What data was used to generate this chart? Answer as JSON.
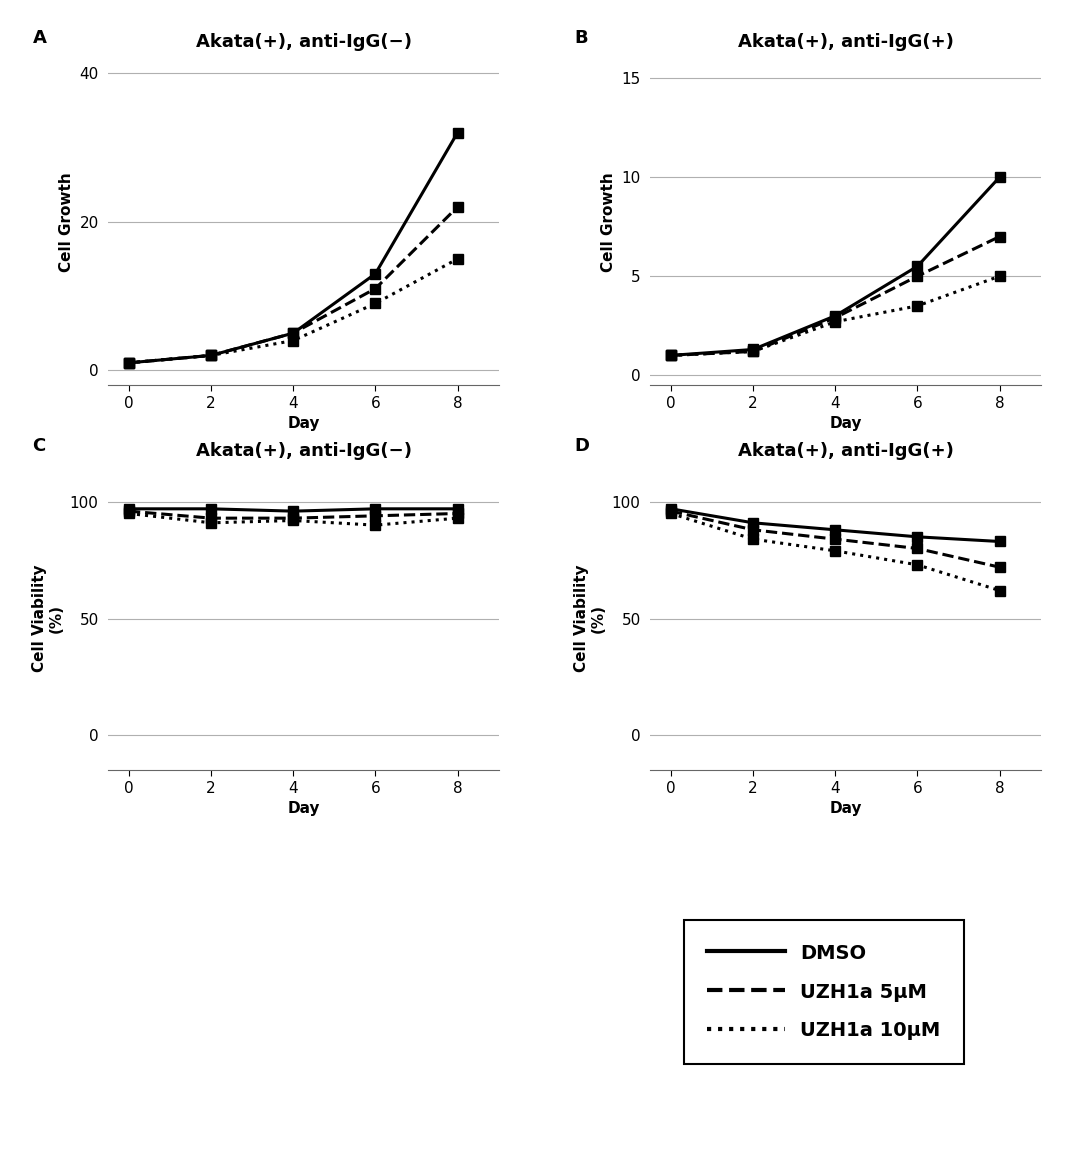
{
  "days": [
    0,
    2,
    4,
    6,
    8
  ],
  "panel_A": {
    "title": "Akata(+), anti-IgG(−)",
    "ylabel": "Cell Growth",
    "ylim": [
      -2,
      42
    ],
    "yticks": [
      0,
      20,
      40
    ],
    "dmso": [
      1,
      2,
      5,
      13,
      32
    ],
    "uzh5": [
      1,
      2,
      5,
      11,
      22
    ],
    "uzh10": [
      1,
      2,
      4,
      9,
      15
    ]
  },
  "panel_B": {
    "title": "Akata(+), anti-IgG(+)",
    "ylabel": "Cell Growth",
    "ylim": [
      -0.5,
      16
    ],
    "yticks": [
      0,
      5,
      10,
      15
    ],
    "dmso": [
      1,
      1.3,
      3,
      5.5,
      10
    ],
    "uzh5": [
      1,
      1.2,
      2.9,
      5,
      7
    ],
    "uzh10": [
      1,
      1.2,
      2.7,
      3.5,
      5
    ]
  },
  "panel_C": {
    "title": "Akata(+), anti-IgG(−)",
    "ylabel": "Cell Viability\n(%)",
    "ylim": [
      -15,
      115
    ],
    "yticks": [
      0,
      50,
      100
    ],
    "dmso": [
      97,
      97,
      96,
      97,
      97
    ],
    "uzh5": [
      96,
      93,
      93,
      94,
      95
    ],
    "uzh10": [
      95,
      91,
      92,
      90,
      93
    ]
  },
  "panel_D": {
    "title": "Akata(+), anti-IgG(+)",
    "ylabel": "Cell Viability\n(%)",
    "ylim": [
      -15,
      115
    ],
    "yticks": [
      0,
      50,
      100
    ],
    "dmso": [
      97,
      91,
      88,
      85,
      83
    ],
    "uzh5": [
      96,
      88,
      84,
      80,
      72
    ],
    "uzh10": [
      95,
      84,
      79,
      73,
      62
    ]
  },
  "panel_labels": [
    "A",
    "B",
    "C",
    "D"
  ],
  "xlabel": "Day",
  "xticks": [
    0,
    2,
    4,
    6,
    8
  ],
  "legend_labels": [
    "DMSO",
    "UZH1a 5μM",
    "UZH1a 10μM"
  ],
  "line_color": "#000000",
  "marker_square": "s",
  "markersize": 7,
  "linewidth": 2.2,
  "linewidth_legend": 3.0,
  "grid_color": "#b0b0b0",
  "background_color": "#ffffff",
  "title_fontsize": 13,
  "label_fontsize": 11,
  "tick_fontsize": 11,
  "legend_fontsize": 14,
  "panel_label_fontsize": 13
}
